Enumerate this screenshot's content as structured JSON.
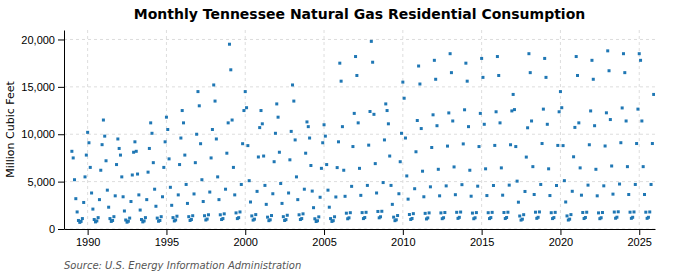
{
  "chart_data": {
    "type": "scatter",
    "title": "Monthly Tennessee Natural Gas Residential Consumption",
    "ylabel": "Million Cubic Feet",
    "annotations": [
      "Source: U.S. Energy Information Administration"
    ],
    "marker": "square",
    "grid": true,
    "xlim": [
      1988.5,
      2026.0
    ],
    "ylim": [
      0,
      21000
    ],
    "xticks": [
      1990,
      1995,
      2000,
      2005,
      2010,
      2015,
      2020,
      2025
    ],
    "yticks": [
      0,
      {
        "value": 5000,
        "label": "5,000"
      },
      {
        "value": 10000,
        "label": "10,000"
      },
      {
        "value": 15000,
        "label": "15,000"
      },
      {
        "value": 20000,
        "label": "20,000"
      }
    ],
    "x": [
      1989,
      1989.083333,
      1989.166667,
      1989.25,
      1989.333333,
      1989.416667,
      1989.5,
      1989.583333,
      1989.666667,
      1989.75,
      1989.833333,
      1989.916667,
      1990,
      1990.083333,
      1990.166667,
      1990.25,
      1990.333333,
      1990.416667,
      1990.5,
      1990.583333,
      1990.666667,
      1990.75,
      1990.833333,
      1990.916667,
      1991,
      1991.083333,
      1991.166667,
      1991.25,
      1991.333333,
      1991.416667,
      1991.5,
      1991.583333,
      1991.666667,
      1991.75,
      1991.833333,
      1991.916667,
      1992,
      1992.083333,
      1992.166667,
      1992.25,
      1992.333333,
      1992.416667,
      1992.5,
      1992.583333,
      1992.666667,
      1992.75,
      1992.833333,
      1992.916667,
      1993,
      1993.083333,
      1993.166667,
      1993.25,
      1993.333333,
      1993.416667,
      1993.5,
      1993.583333,
      1993.666667,
      1993.75,
      1993.833333,
      1993.916667,
      1994,
      1994.083333,
      1994.166667,
      1994.25,
      1994.333333,
      1994.416667,
      1994.5,
      1994.583333,
      1994.666667,
      1994.75,
      1994.833333,
      1994.916667,
      1995,
      1995.083333,
      1995.166667,
      1995.25,
      1995.333333,
      1995.416667,
      1995.5,
      1995.583333,
      1995.666667,
      1995.75,
      1995.833333,
      1995.916667,
      1996,
      1996.083333,
      1996.166667,
      1996.25,
      1996.333333,
      1996.416667,
      1996.5,
      1996.583333,
      1996.666667,
      1996.75,
      1996.833333,
      1996.916667,
      1997,
      1997.083333,
      1997.166667,
      1997.25,
      1997.333333,
      1997.416667,
      1997.5,
      1997.583333,
      1997.666667,
      1997.75,
      1997.833333,
      1997.916667,
      1998,
      1998.083333,
      1998.166667,
      1998.25,
      1998.333333,
      1998.416667,
      1998.5,
      1998.583333,
      1998.666667,
      1998.75,
      1998.833333,
      1998.916667,
      1999,
      1999.083333,
      1999.166667,
      1999.25,
      1999.333333,
      1999.416667,
      1999.5,
      1999.583333,
      1999.666667,
      1999.75,
      1999.833333,
      1999.916667,
      2000,
      2000.083333,
      2000.166667,
      2000.25,
      2000.333333,
      2000.416667,
      2000.5,
      2000.583333,
      2000.666667,
      2000.75,
      2000.833333,
      2000.916667,
      2001,
      2001.083333,
      2001.166667,
      2001.25,
      2001.333333,
      2001.416667,
      2001.5,
      2001.583333,
      2001.666667,
      2001.75,
      2001.833333,
      2001.916667,
      2002,
      2002.083333,
      2002.166667,
      2002.25,
      2002.333333,
      2002.416667,
      2002.5,
      2002.583333,
      2002.666667,
      2002.75,
      2002.833333,
      2002.916667,
      2003,
      2003.083333,
      2003.166667,
      2003.25,
      2003.333333,
      2003.416667,
      2003.5,
      2003.583333,
      2003.666667,
      2003.75,
      2003.833333,
      2003.916667,
      2004,
      2004.083333,
      2004.166667,
      2004.25,
      2004.333333,
      2004.416667,
      2004.5,
      2004.583333,
      2004.666667,
      2004.75,
      2004.833333,
      2004.916667,
      2005,
      2005.083333,
      2005.166667,
      2005.25,
      2005.333333,
      2005.416667,
      2005.5,
      2005.583333,
      2005.666667,
      2005.75,
      2005.833333,
      2005.916667,
      2006,
      2006.083333,
      2006.166667,
      2006.25,
      2006.333333,
      2006.416667,
      2006.5,
      2006.583333,
      2006.666667,
      2006.75,
      2006.833333,
      2006.916667,
      2007,
      2007.083333,
      2007.166667,
      2007.25,
      2007.333333,
      2007.416667,
      2007.5,
      2007.583333,
      2007.666667,
      2007.75,
      2007.833333,
      2007.916667,
      2008,
      2008.083333,
      2008.166667,
      2008.25,
      2008.333333,
      2008.416667,
      2008.5,
      2008.583333,
      2008.666667,
      2008.75,
      2008.833333,
      2008.916667,
      2009,
      2009.083333,
      2009.166667,
      2009.25,
      2009.333333,
      2009.416667,
      2009.5,
      2009.583333,
      2009.666667,
      2009.75,
      2009.833333,
      2009.916667,
      2010,
      2010.083333,
      2010.166667,
      2010.25,
      2010.333333,
      2010.416667,
      2010.5,
      2010.583333,
      2010.666667,
      2010.75,
      2010.833333,
      2010.916667,
      2011,
      2011.083333,
      2011.166667,
      2011.25,
      2011.333333,
      2011.416667,
      2011.5,
      2011.583333,
      2011.666667,
      2011.75,
      2011.833333,
      2011.916667,
      2012,
      2012.083333,
      2012.166667,
      2012.25,
      2012.333333,
      2012.416667,
      2012.5,
      2012.583333,
      2012.666667,
      2012.75,
      2012.833333,
      2012.916667,
      2013,
      2013.083333,
      2013.166667,
      2013.25,
      2013.333333,
      2013.416667,
      2013.5,
      2013.583333,
      2013.666667,
      2013.75,
      2013.833333,
      2013.916667,
      2014,
      2014.083333,
      2014.166667,
      2014.25,
      2014.333333,
      2014.416667,
      2014.5,
      2014.583333,
      2014.666667,
      2014.75,
      2014.833333,
      2014.916667,
      2015,
      2015.083333,
      2015.166667,
      2015.25,
      2015.333333,
      2015.416667,
      2015.5,
      2015.583333,
      2015.666667,
      2015.75,
      2015.833333,
      2015.916667,
      2016,
      2016.083333,
      2016.166667,
      2016.25,
      2016.333333,
      2016.416667,
      2016.5,
      2016.583333,
      2016.666667,
      2016.75,
      2016.833333,
      2016.916667,
      2017,
      2017.083333,
      2017.166667,
      2017.25,
      2017.333333,
      2017.416667,
      2017.5,
      2017.583333,
      2017.666667,
      2017.75,
      2017.833333,
      2017.916667,
      2018,
      2018.083333,
      2018.166667,
      2018.25,
      2018.333333,
      2018.416667,
      2018.5,
      2018.583333,
      2018.666667,
      2018.75,
      2018.833333,
      2018.916667,
      2019,
      2019.083333,
      2019.166667,
      2019.25,
      2019.333333,
      2019.416667,
      2019.5,
      2019.583333,
      2019.666667,
      2019.75,
      2019.833333,
      2019.916667,
      2020,
      2020.083333,
      2020.166667,
      2020.25,
      2020.333333,
      2020.416667,
      2020.5,
      2020.583333,
      2020.666667,
      2020.75,
      2020.833333,
      2020.916667,
      2021,
      2021.083333,
      2021.166667,
      2021.25,
      2021.333333,
      2021.416667,
      2021.5,
      2021.583333,
      2021.666667,
      2021.75,
      2021.833333,
      2021.916667,
      2022,
      2022.083333,
      2022.166667,
      2022.25,
      2022.333333,
      2022.416667,
      2022.5,
      2022.583333,
      2022.666667,
      2022.75,
      2022.833333,
      2022.916667,
      2023,
      2023.083333,
      2023.166667,
      2023.25,
      2023.333333,
      2023.416667,
      2023.5,
      2023.583333,
      2023.666667,
      2023.75,
      2023.833333,
      2023.916667,
      2024,
      2024.083333,
      2024.166667,
      2024.25,
      2024.333333,
      2024.416667,
      2024.5,
      2024.583333,
      2024.666667,
      2024.75,
      2024.833333,
      2024.916667,
      2025,
      2025.083333,
      2025.166667,
      2025.25,
      2025.333333,
      2025.416667,
      2025.5,
      2025.583333,
      2025.666667,
      2025.75,
      2025.833333,
      2025.916667
    ],
    "values": [
      8200,
      7500,
      5200,
      3200,
      1800,
      900,
      700,
      800,
      1100,
      2800,
      5500,
      7800,
      10200,
      9100,
      6500,
      3800,
      2100,
      1000,
      750,
      850,
      1200,
      3100,
      6200,
      8900,
      11500,
      9800,
      7200,
      4100,
      2300,
      1100,
      800,
      900,
      1300,
      3500,
      6800,
      9500,
      8500,
      7800,
      5500,
      3400,
      1900,
      950,
      720,
      820,
      1150,
      2900,
      5700,
      8100,
      9200,
      8200,
      5800,
      3600,
      2000,
      1000,
      750,
      850,
      1200,
      3100,
      6000,
      8500,
      11200,
      10100,
      7000,
      4200,
      2400,
      1150,
      820,
      900,
      1300,
      3400,
      6500,
      9200,
      11800,
      10500,
      7400,
      4400,
      2500,
      1200,
      850,
      950,
      1350,
      3600,
      6800,
      9600,
      12500,
      11200,
      7800,
      4700,
      2700,
      1300,
      900,
      1000,
      1400,
      3700,
      7000,
      10000,
      14500,
      13000,
      9000,
      5200,
      2900,
      1400,
      950,
      1050,
      1500,
      3900,
      7500,
      10500,
      15200,
      13500,
      9500,
      5500,
      3100,
      1500,
      1000,
      1100,
      1600,
      4200,
      8000,
      11200,
      19500,
      16800,
      11500,
      6500,
      3600,
      1700,
      1100,
      1200,
      1800,
      4700,
      9000,
      12500,
      14500,
      12800,
      8800,
      5100,
      2850,
      1380,
      940,
      1040,
      1520,
      3970,
      7600,
      10700,
      12500,
      11100,
      7700,
      4600,
      2600,
      1250,
      880,
      970,
      1420,
      3720,
      7100,
      10100,
      13200,
      11800,
      8100,
      4800,
      2700,
      1300,
      900,
      990,
      1450,
      3800,
      7300,
      10300,
      15200,
      13500,
      9400,
      5500,
      3100,
      1500,
      1000,
      1100,
      1600,
      4200,
      8000,
      11300,
      10800,
      9600,
      6700,
      4000,
      2250,
      1080,
      790,
      870,
      1280,
      3350,
      6400,
      9100,
      11000,
      9800,
      6800,
      4100,
      2300,
      1100,
      800,
      880,
      1290,
      3380,
      6480,
      9200,
      17500,
      15600,
      10800,
      6200,
      3450,
      1670,
      1080,
      1180,
      1720,
      4500,
      8700,
      12200,
      18200,
      16200,
      11200,
      6400,
      3550,
      1730,
      1100,
      1210,
      1760,
      4600,
      8850,
      12400,
      19800,
      17600,
      12100,
      6900,
      3800,
      1850,
      1180,
      1290,
      1870,
      4900,
      9400,
      13200,
      12500,
      11100,
      7700,
      4600,
      2600,
      1250,
      880,
      970,
      1420,
      3720,
      7100,
      10100,
      15500,
      13800,
      9600,
      5600,
      3150,
      1530,
      1010,
      1110,
      1620,
      4250,
      8150,
      11450,
      17200,
      15300,
      10600,
      6100,
      3400,
      1650,
      1060,
      1170,
      1700,
      4450,
      8600,
      12050,
      17800,
      15800,
      10900,
      6300,
      3500,
      1700,
      1090,
      1190,
      1740,
      4550,
      8750,
      12250,
      18500,
      16500,
      11400,
      6550,
      3620,
      1760,
      1120,
      1230,
      1790,
      4680,
      8980,
      12580,
      17500,
      15600,
      10800,
      6200,
      3460,
      1680,
      1085,
      1185,
      1730,
      4520,
      8700,
      12200,
      18000,
      16000,
      11050,
      6350,
      3530,
      1720,
      1100,
      1205,
      1755,
      4590,
      8820,
      12370,
      18200,
      16200,
      11200,
      6450,
      3570,
      1740,
      1105,
      1215,
      1770,
      4630,
      8890,
      12460,
      14200,
      12600,
      8700,
      5050,
      2830,
      1370,
      940,
      1035,
      1510,
      3960,
      7590,
      10680,
      18500,
      16500,
      11400,
      6580,
      3640,
      1775,
      1125,
      1235,
      1800,
      4700,
      9020,
      12650,
      18000,
      16000,
      11050,
      6350,
      3530,
      1720,
      1100,
      1205,
      1755,
      4590,
      8820,
      12370,
      14500,
      12800,
      8800,
      5100,
      2850,
      1380,
      945,
      1040,
      1520,
      3980,
      7620,
      10720,
      18200,
      16200,
      11200,
      6450,
      3570,
      1740,
      1105,
      1215,
      1770,
      4630,
      8890,
      12460,
      17800,
      15800,
      10900,
      6300,
      3500,
      1700,
      1090,
      1190,
      1740,
      4555,
      8760,
      12260,
      18800,
      16700,
      11550,
      6650,
      3680,
      1790,
      1135,
      1245,
      1815,
      4745,
      9105,
      12775,
      18500,
      16500,
      11400,
      6580,
      3640,
      1775,
      1125,
      1235,
      1800,
      4700,
      9020,
      12650,
      18500,
      17800,
      11400,
      6580,
      3640,
      1775,
      1125,
      1235,
      1800,
      4700,
      9020,
      14200
    ]
  }
}
